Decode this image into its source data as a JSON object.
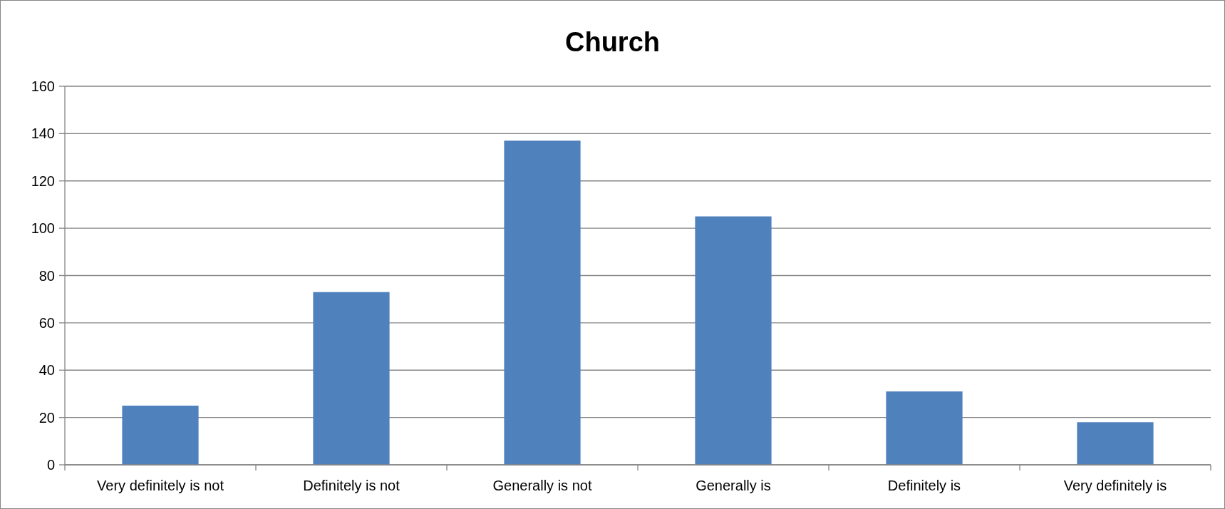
{
  "chart_data": {
    "type": "bar",
    "title": "Church",
    "categories": [
      "Very definitely is not",
      "Definitely is not",
      "Generally is not",
      "Generally is",
      "Definitely is",
      "Very definitely is"
    ],
    "values": [
      25,
      73,
      137,
      105,
      31,
      18
    ],
    "color": "#4f81bd",
    "ylim": [
      0,
      160
    ],
    "yticks": [
      0,
      20,
      40,
      60,
      80,
      100,
      120,
      140,
      160
    ],
    "grid": "y"
  }
}
